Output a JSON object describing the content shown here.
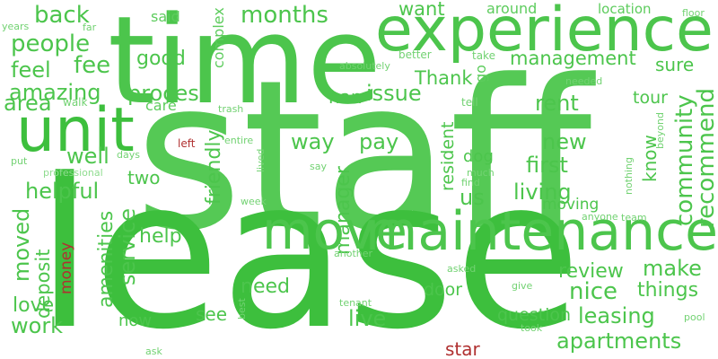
{
  "colors": {
    "background": "#ffffff",
    "green_1": "#3dbf3d",
    "green_2": "#4cc54c",
    "green_3": "#5dcc5d",
    "green_4": "#72d272",
    "green_5": "#8fdc8f",
    "red": "#b03030"
  },
  "words": [
    {
      "text": "staff",
      "color": "#55c955"
    },
    {
      "text": "lease",
      "color": "#3dbf3d"
    },
    {
      "text": "time",
      "color": "#4cc54c"
    },
    {
      "text": "experience",
      "color": "#4cc54c"
    },
    {
      "text": "maintenance",
      "color": "#4cc54c"
    },
    {
      "text": "move",
      "color": "#4cc54c"
    },
    {
      "text": "unit",
      "color": "#3dbf3d"
    },
    {
      "text": "back",
      "color": "#4cc54c"
    },
    {
      "text": "months",
      "color": "#4cc54c"
    },
    {
      "text": "want",
      "color": "#4cc54c"
    },
    {
      "text": "around",
      "color": "#5dcc5d"
    },
    {
      "text": "location",
      "color": "#5dcc5d"
    },
    {
      "text": "floor",
      "color": "#72d272"
    },
    {
      "text": "said",
      "color": "#5dcc5d"
    },
    {
      "text": "complex",
      "color": "#5dcc5d"
    },
    {
      "text": "years",
      "color": "#72d272"
    },
    {
      "text": "far",
      "color": "#72d272"
    },
    {
      "text": "people",
      "color": "#4cc54c"
    },
    {
      "text": "good",
      "color": "#4cc54c"
    },
    {
      "text": "management",
      "color": "#4cc54c"
    },
    {
      "text": "better",
      "color": "#72d272"
    },
    {
      "text": "take",
      "color": "#72d272"
    },
    {
      "text": "feel",
      "color": "#4cc54c"
    },
    {
      "text": "fee",
      "color": "#4cc54c"
    },
    {
      "text": "absolutely",
      "color": "#72d272"
    },
    {
      "text": "Thank",
      "color": "#4cc54c"
    },
    {
      "text": "go",
      "color": "#5dcc5d"
    },
    {
      "text": "sure",
      "color": "#4cc54c"
    },
    {
      "text": "needed",
      "color": "#72d272"
    },
    {
      "text": "amazing",
      "color": "#4cc54c"
    },
    {
      "text": "process",
      "color": "#4cc54c"
    },
    {
      "text": "nan",
      "color": "#4cc54c"
    },
    {
      "text": "issue",
      "color": "#4cc54c"
    },
    {
      "text": "rent",
      "color": "#4cc54c"
    },
    {
      "text": "tour",
      "color": "#4cc54c"
    },
    {
      "text": "area",
      "color": "#4cc54c"
    },
    {
      "text": "walk",
      "color": "#72d272"
    },
    {
      "text": "care",
      "color": "#5dcc5d"
    },
    {
      "text": "trash",
      "color": "#72d272"
    },
    {
      "text": "tell",
      "color": "#72d272"
    },
    {
      "text": "recommend",
      "color": "#4cc54c"
    },
    {
      "text": "community",
      "color": "#4cc54c"
    },
    {
      "text": "beyond",
      "color": "#72d272"
    },
    {
      "text": "way",
      "color": "#4cc54c"
    },
    {
      "text": "pay",
      "color": "#4cc54c"
    },
    {
      "text": "new",
      "color": "#4cc54c"
    },
    {
      "text": "left",
      "color": "#b03030"
    },
    {
      "text": "entire",
      "color": "#72d272"
    },
    {
      "text": "know",
      "color": "#4cc54c"
    },
    {
      "text": "put",
      "color": "#72d272"
    },
    {
      "text": "days",
      "color": "#72d272"
    },
    {
      "text": "well",
      "color": "#4cc54c"
    },
    {
      "text": "lived",
      "color": "#72d272"
    },
    {
      "text": "resident",
      "color": "#4cc54c"
    },
    {
      "text": "dog",
      "color": "#4cc54c"
    },
    {
      "text": "first",
      "color": "#4cc54c"
    },
    {
      "text": "say",
      "color": "#72d272"
    },
    {
      "text": "much",
      "color": "#72d272"
    },
    {
      "text": "professional",
      "color": "#8fdc8f"
    },
    {
      "text": "find",
      "color": "#72d272"
    },
    {
      "text": "nothing",
      "color": "#72d272"
    },
    {
      "text": "friendly",
      "color": "#4cc54c"
    },
    {
      "text": "two",
      "color": "#4cc54c"
    },
    {
      "text": "manager",
      "color": "#4cc54c"
    },
    {
      "text": "us",
      "color": "#4cc54c"
    },
    {
      "text": "living",
      "color": "#4cc54c"
    },
    {
      "text": "helpful",
      "color": "#4cc54c"
    },
    {
      "text": "week",
      "color": "#72d272"
    },
    {
      "text": "moving",
      "color": "#4cc54c"
    },
    {
      "text": "anyone",
      "color": "#72d272"
    },
    {
      "text": "team",
      "color": "#72d272"
    },
    {
      "text": "moved",
      "color": "#4cc54c"
    },
    {
      "text": "amenities",
      "color": "#4cc54c"
    },
    {
      "text": "service",
      "color": "#4cc54c"
    },
    {
      "text": "help",
      "color": "#4cc54c"
    },
    {
      "text": "deposit",
      "color": "#4cc54c"
    },
    {
      "text": "money",
      "color": "#b03030"
    },
    {
      "text": "another",
      "color": "#72d272"
    },
    {
      "text": "make",
      "color": "#4cc54c"
    },
    {
      "text": "review",
      "color": "#4cc54c"
    },
    {
      "text": "need",
      "color": "#4cc54c"
    },
    {
      "text": "asked",
      "color": "#72d272"
    },
    {
      "text": "door",
      "color": "#4cc54c"
    },
    {
      "text": "nice",
      "color": "#4cc54c"
    },
    {
      "text": "things",
      "color": "#4cc54c"
    },
    {
      "text": "give",
      "color": "#72d272"
    },
    {
      "text": "love",
      "color": "#4cc54c"
    },
    {
      "text": "see",
      "color": "#4cc54c"
    },
    {
      "text": "best",
      "color": "#72d272"
    },
    {
      "text": "tenant",
      "color": "#72d272"
    },
    {
      "text": "leasing",
      "color": "#4cc54c"
    },
    {
      "text": "work",
      "color": "#4cc54c"
    },
    {
      "text": "live",
      "color": "#4cc54c"
    },
    {
      "text": "question",
      "color": "#4cc54c"
    },
    {
      "text": "pool",
      "color": "#72d272"
    },
    {
      "text": "now",
      "color": "#4cc54c"
    },
    {
      "text": "took",
      "color": "#72d272"
    },
    {
      "text": "apartments",
      "color": "#4cc54c"
    },
    {
      "text": "ask",
      "color": "#72d272"
    },
    {
      "text": "star",
      "color": "#b03030"
    }
  ]
}
